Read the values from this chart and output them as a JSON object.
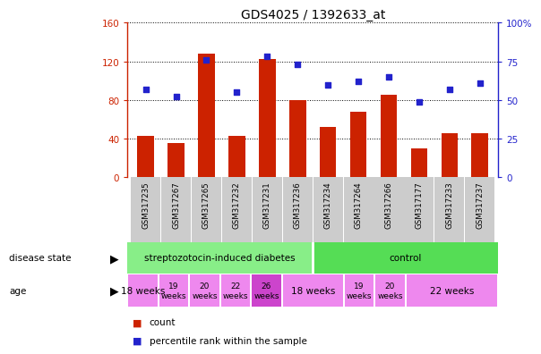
{
  "title": "GDS4025 / 1392633_at",
  "samples": [
    "GSM317235",
    "GSM317267",
    "GSM317265",
    "GSM317232",
    "GSM317231",
    "GSM317236",
    "GSM317234",
    "GSM317264",
    "GSM317266",
    "GSM317177",
    "GSM317233",
    "GSM317237"
  ],
  "counts": [
    43,
    35,
    128,
    43,
    122,
    80,
    52,
    68,
    85,
    30,
    46,
    46
  ],
  "percentiles": [
    57,
    52,
    76,
    55,
    78,
    73,
    60,
    62,
    65,
    49,
    57,
    61
  ],
  "bar_color": "#cc2200",
  "dot_color": "#2222cc",
  "ylim_left": [
    0,
    160
  ],
  "ylim_right": [
    0,
    100
  ],
  "yticks_left": [
    0,
    40,
    80,
    120,
    160
  ],
  "yticks_right": [
    0,
    25,
    50,
    75,
    100
  ],
  "legend_count_label": "count",
  "legend_percentile_label": "percentile rank within the sample",
  "background_color": "#ffffff",
  "ds_green_light": "#88ee88",
  "ds_green_dark": "#55dd55",
  "age_pink_light": "#ee88ee",
  "age_pink_dark": "#cc44cc",
  "tick_bg": "#cccccc"
}
